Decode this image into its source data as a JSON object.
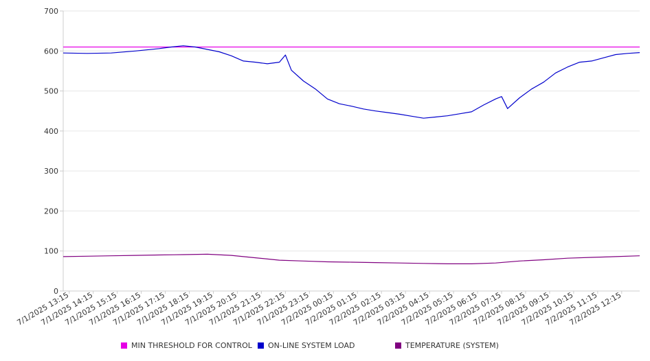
{
  "chart_data": {
    "type": "line",
    "ylim": [
      0,
      700
    ],
    "yticks": [
      0,
      100,
      200,
      300,
      400,
      500,
      600,
      700
    ],
    "grid": true,
    "legend_position": "bottom",
    "x_start": "7/1/2025 13:00",
    "x_end": "7/2/2025 13:00",
    "xtick_labels": [
      "7/1/2025 13:15",
      "7/1/2025 14:15",
      "7/1/2025 15:15",
      "7/1/2025 16:15",
      "7/1/2025 17:15",
      "7/1/2025 18:15",
      "7/1/2025 19:15",
      "7/1/2025 20:15",
      "7/1/2025 21:15",
      "7/1/2025 22:15",
      "7/1/2025 23:15",
      "7/2/2025 00:15",
      "7/2/2025 01:15",
      "7/2/2025 02:15",
      "7/2/2025 03:15",
      "7/2/2025 04:15",
      "7/2/2025 05:15",
      "7/2/2025 06:15",
      "7/2/2025 07:15",
      "7/2/2025 08:15",
      "7/2/2025 09:15",
      "7/2/2025 10:15",
      "7/2/2025 11:15",
      "7/2/2025 12:15"
    ],
    "series": [
      {
        "name": "MIN THRESHOLD FOR CONTROL",
        "color": "#e600e6",
        "x": [
          "7/1/2025 13:00",
          "7/2/2025 13:00"
        ],
        "values": [
          610,
          610
        ]
      },
      {
        "name": "ON-LINE SYSTEM LOAD",
        "color": "#0000cc",
        "x": [
          "7/1/2025 13:00",
          "7/1/2025 14:00",
          "7/1/2025 15:00",
          "7/1/2025 16:00",
          "7/1/2025 17:00",
          "7/1/2025 17:30",
          "7/1/2025 18:00",
          "7/1/2025 18:30",
          "7/1/2025 19:00",
          "7/1/2025 19:30",
          "7/1/2025 20:00",
          "7/1/2025 20:30",
          "7/1/2025 21:00",
          "7/1/2025 21:30",
          "7/1/2025 22:00",
          "7/1/2025 22:15",
          "7/1/2025 22:30",
          "7/1/2025 23:00",
          "7/1/2025 23:30",
          "7/2/2025 00:00",
          "7/2/2025 00:30",
          "7/2/2025 01:00",
          "7/2/2025 01:30",
          "7/2/2025 02:00",
          "7/2/2025 02:30",
          "7/2/2025 03:00",
          "7/2/2025 03:30",
          "7/2/2025 04:00",
          "7/2/2025 04:30",
          "7/2/2025 05:00",
          "7/2/2025 05:30",
          "7/2/2025 06:00",
          "7/2/2025 06:30",
          "7/2/2025 07:00",
          "7/2/2025 07:15",
          "7/2/2025 07:30",
          "7/2/2025 08:00",
          "7/2/2025 08:30",
          "7/2/2025 09:00",
          "7/2/2025 09:30",
          "7/2/2025 10:00",
          "7/2/2025 10:30",
          "7/2/2025 11:00",
          "7/2/2025 11:30",
          "7/2/2025 12:00",
          "7/2/2025 12:30",
          "7/2/2025 13:00"
        ],
        "values": [
          595,
          594,
          595,
          600,
          606,
          610,
          613,
          610,
          604,
          598,
          588,
          575,
          572,
          568,
          572,
          590,
          552,
          525,
          505,
          480,
          468,
          462,
          455,
          450,
          446,
          442,
          437,
          432,
          435,
          438,
          443,
          448,
          465,
          480,
          486,
          456,
          483,
          505,
          522,
          545,
          560,
          572,
          575,
          583,
          591,
          594,
          596
        ]
      },
      {
        "name": "TEMPERATURE (SYSTEM)",
        "color": "#800080",
        "x": [
          "7/1/2025 13:00",
          "7/1/2025 14:00",
          "7/1/2025 15:00",
          "7/1/2025 16:00",
          "7/1/2025 17:00",
          "7/1/2025 18:00",
          "7/1/2025 19:00",
          "7/1/2025 20:00",
          "7/1/2025 21:00",
          "7/1/2025 22:00",
          "7/1/2025 23:00",
          "7/2/2025 00:00",
          "7/2/2025 01:00",
          "7/2/2025 02:00",
          "7/2/2025 03:00",
          "7/2/2025 04:00",
          "7/2/2025 05:00",
          "7/2/2025 06:00",
          "7/2/2025 07:00",
          "7/2/2025 08:00",
          "7/2/2025 09:00",
          "7/2/2025 10:00",
          "7/2/2025 11:00",
          "7/2/2025 12:00",
          "7/2/2025 13:00"
        ],
        "values": [
          86,
          87,
          88,
          89,
          90,
          91,
          92,
          89,
          83,
          77,
          75,
          73,
          72,
          71,
          70,
          69,
          68,
          68,
          70,
          75,
          78,
          82,
          84,
          86,
          88
        ]
      }
    ]
  }
}
